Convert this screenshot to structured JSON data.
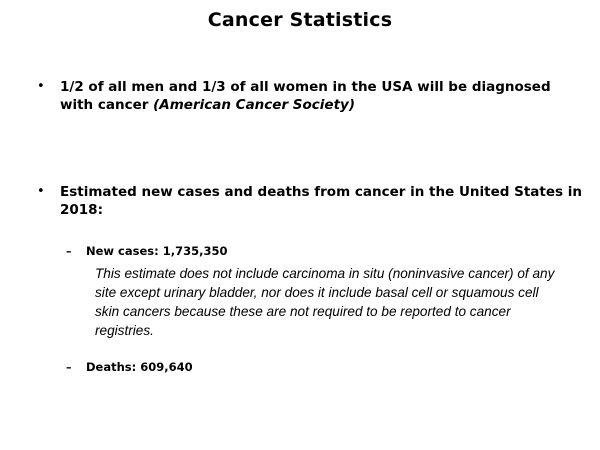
{
  "slide": {
    "title": "Cancer Statistics",
    "bullet_char": "•",
    "dash_char": "–",
    "bullet1": {
      "text": "1/2 of all men and 1/3 of all women in the USA will be diagnosed with cancer ",
      "source": "(American Cancer Society)"
    },
    "bullet2": {
      "text": "Estimated new cases and deaths from cancer in the United States in 2018:"
    },
    "new_cases": {
      "label": "New cases: 1,735,350",
      "note": "This estimate does not include carcinoma in situ (noninvasive cancer) of any site except urinary bladder, nor does it include basal cell or squamous cell skin cancers because these are not required to be reported to cancer registries."
    },
    "deaths": {
      "label": "Deaths: 609,640"
    }
  }
}
